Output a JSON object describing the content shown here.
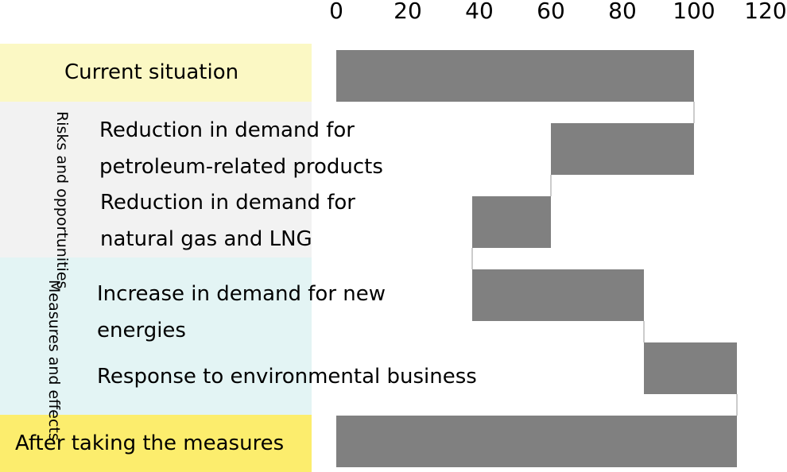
{
  "chart_data": {
    "type": "bar",
    "subtype": "waterfall",
    "axis": {
      "min": 0,
      "max": 120,
      "ticks": [
        0,
        20,
        40,
        60,
        80,
        100,
        120
      ],
      "position": "top"
    },
    "bar_color": "#808080",
    "groups": {
      "current": {
        "label": "Current situation",
        "color": "#fbf8c4"
      },
      "risks": {
        "label": "Risks and opportunities",
        "color": "#f2f2f2"
      },
      "measures": {
        "label": "Measures and effects",
        "color": "#e3f4f4"
      },
      "after": {
        "label": "After taking the measures",
        "color": "#fced6d"
      }
    },
    "items": [
      {
        "lines": [
          "Reduction in demand for",
          "petroleum-related products"
        ]
      },
      {
        "lines": [
          "Reduction in demand for",
          "natural gas and LNG"
        ]
      },
      {
        "lines": [
          "Increase in demand for new",
          "energies"
        ]
      },
      {
        "lines": [
          "Response to environmental business"
        ]
      }
    ],
    "bars": [
      {
        "category": "Current situation",
        "start": 0,
        "end": 100
      },
      {
        "category": "Reduction in demand for petroleum-related products",
        "start": 60,
        "end": 100
      },
      {
        "category": "Reduction in demand for natural gas and LNG",
        "start": 38,
        "end": 60
      },
      {
        "category": "Increase in demand for new energies",
        "start": 38,
        "end": 86
      },
      {
        "category": "Response to environmental business",
        "start": 86,
        "end": 112
      },
      {
        "category": "After taking the measures",
        "start": 0,
        "end": 112
      }
    ]
  }
}
